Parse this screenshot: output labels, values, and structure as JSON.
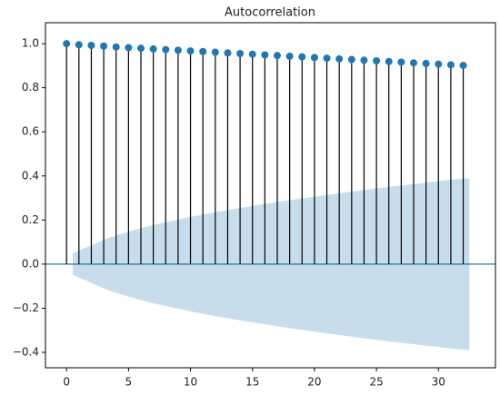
{
  "chart_data": {
    "type": "stem",
    "title": "Autocorrelation",
    "x": [
      0,
      1,
      2,
      3,
      4,
      5,
      6,
      7,
      8,
      9,
      10,
      11,
      12,
      13,
      14,
      15,
      16,
      17,
      18,
      19,
      20,
      21,
      22,
      23,
      24,
      25,
      26,
      27,
      28,
      29,
      30,
      31,
      32
    ],
    "values": [
      1.0,
      0.995,
      0.992,
      0.989,
      0.985,
      0.982,
      0.979,
      0.976,
      0.973,
      0.97,
      0.967,
      0.964,
      0.961,
      0.958,
      0.955,
      0.952,
      0.949,
      0.946,
      0.943,
      0.94,
      0.937,
      0.934,
      0.931,
      0.928,
      0.925,
      0.922,
      0.919,
      0.916,
      0.913,
      0.91,
      0.907,
      0.904,
      0.901
    ],
    "color": "#1f77b4",
    "stem_color": "#000000",
    "confidence_band": {
      "color": "#1f77b4",
      "x": [
        0.5,
        2,
        3,
        4,
        5,
        6,
        7,
        8,
        9,
        10,
        11,
        12,
        13,
        14,
        15,
        16,
        17,
        18,
        19,
        20,
        21,
        22,
        23,
        24,
        25,
        26,
        27,
        28,
        29,
        30,
        31,
        32.5
      ],
      "upper": [
        0.049,
        0.085,
        0.11,
        0.13,
        0.147,
        0.163,
        0.177,
        0.19,
        0.202,
        0.214,
        0.225,
        0.235,
        0.245,
        0.255,
        0.264,
        0.273,
        0.282,
        0.29,
        0.298,
        0.306,
        0.314,
        0.321,
        0.329,
        0.336,
        0.343,
        0.35,
        0.357,
        0.363,
        0.37,
        0.376,
        0.383,
        0.389
      ],
      "lower": [
        -0.049,
        -0.085,
        -0.11,
        -0.13,
        -0.147,
        -0.163,
        -0.177,
        -0.19,
        -0.202,
        -0.214,
        -0.225,
        -0.235,
        -0.245,
        -0.255,
        -0.264,
        -0.273,
        -0.282,
        -0.29,
        -0.298,
        -0.306,
        -0.314,
        -0.321,
        -0.329,
        -0.336,
        -0.343,
        -0.35,
        -0.357,
        -0.363,
        -0.37,
        -0.376,
        -0.383,
        -0.389
      ]
    },
    "xlim": [
      -1.7,
      34.6
    ],
    "ylim": [
      -0.47,
      1.095
    ],
    "xticks": [
      0,
      5,
      10,
      15,
      20,
      25,
      30
    ],
    "yticks": [
      {
        "value": -0.4,
        "label": "−0.4"
      },
      {
        "value": -0.2,
        "label": "−0.2"
      },
      {
        "value": 0,
        "label": "0.0"
      },
      0.2,
      0.4,
      0.6,
      0.8,
      {
        "value": 1,
        "label": "1.0"
      }
    ],
    "grid": false
  }
}
